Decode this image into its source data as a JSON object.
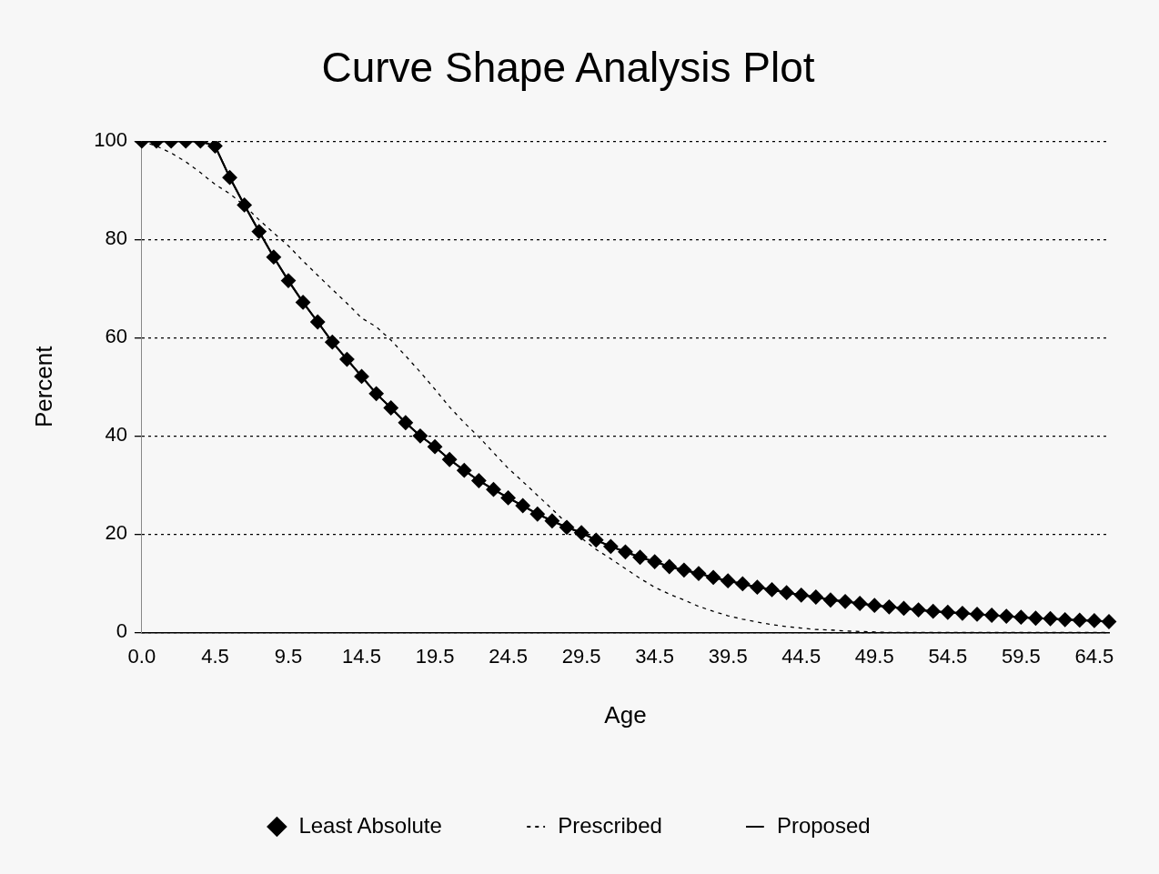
{
  "chart_data": {
    "type": "line",
    "title": "Curve Shape Analysis Plot",
    "xlabel": "Age",
    "ylabel": "Percent",
    "categories": [
      "0.0",
      null,
      null,
      null,
      null,
      "4.5",
      null,
      null,
      null,
      null,
      "9.5",
      null,
      null,
      null,
      null,
      "14.5",
      null,
      null,
      null,
      null,
      "19.5",
      null,
      null,
      null,
      null,
      "24.5",
      null,
      null,
      null,
      null,
      "29.5",
      null,
      null,
      null,
      null,
      "34.5",
      null,
      null,
      null,
      null,
      "39.5",
      null,
      null,
      null,
      null,
      "44.5",
      null,
      null,
      null,
      null,
      "49.5",
      null,
      null,
      null,
      null,
      "54.5",
      null,
      null,
      null,
      null,
      "59.5",
      null,
      null,
      null,
      null,
      "64.5",
      null
    ],
    "ylim": [
      0,
      100
    ],
    "yticks": [
      0,
      20,
      40,
      60,
      80,
      100
    ],
    "grid": "y",
    "legend": "bottom",
    "series": [
      {
        "name": "Least Absolute",
        "color": "#000000",
        "marker": "diamond",
        "line_style": "solid",
        "values": [
          100,
          100,
          100,
          100,
          100,
          99,
          92.6,
          87,
          81.6,
          76.4,
          71.6,
          67.2,
          63.2,
          59.1,
          55.6,
          52.1,
          48.6,
          45.7,
          42.7,
          40,
          37.8,
          35.2,
          33,
          30.9,
          29.1,
          27.4,
          25.8,
          24.1,
          22.7,
          21.4,
          20.3,
          18.8,
          17.5,
          16.4,
          15.3,
          14.4,
          13.4,
          12.7,
          12,
          11.2,
          10.5,
          9.9,
          9.2,
          8.7,
          8.1,
          7.6,
          7.2,
          6.6,
          6.3,
          5.9,
          5.5,
          5.2,
          4.9,
          4.6,
          4.3,
          4.1,
          3.9,
          3.7,
          3.5,
          3.3,
          3.1,
          2.9,
          2.8,
          2.6,
          2.5,
          2.4,
          2.2
        ]
      },
      {
        "name": "Prescribed",
        "color": "#000000",
        "marker": "none",
        "line_style": "dashed",
        "values": [
          100,
          99,
          97.6,
          95.8,
          93.6,
          91.2,
          89.3,
          86.9,
          84,
          81.3,
          78.7,
          75.6,
          72.7,
          69.8,
          67,
          64,
          62.2,
          59.5,
          56.3,
          53,
          49.5,
          45.9,
          42.7,
          39.8,
          36.6,
          33.4,
          30.7,
          27.9,
          25.1,
          22.2,
          19.2,
          16.9,
          15,
          13,
          11,
          9.2,
          7.8,
          6.6,
          5.3,
          4.3,
          3.4,
          2.7,
          2.1,
          1.6,
          1.2,
          0.9,
          0.6,
          0.5,
          0.3,
          0.2,
          0.1,
          0,
          0,
          0,
          0,
          0,
          0,
          0,
          0,
          0,
          0,
          0,
          0,
          0,
          0,
          0,
          0
        ]
      },
      {
        "name": "Proposed",
        "color": "#000000",
        "marker": "none",
        "line_style": "solid",
        "values": [
          100,
          100,
          100,
          100,
          100,
          99,
          92.6,
          87,
          81.6,
          76.4,
          71.6,
          67.2,
          63.2,
          59.1,
          55.6,
          52.1,
          48.6,
          45.7,
          42.7,
          40,
          37.8,
          35.2,
          33,
          30.9,
          29.1,
          27.4,
          25.8,
          24.1,
          22.7,
          21.4,
          20.3,
          18.8,
          17.5,
          16.4,
          15.3,
          14.4,
          13.4,
          12.7,
          12,
          11.2,
          10.5,
          9.9,
          9.2,
          8.7,
          8.1,
          7.6,
          7.2,
          6.6,
          6.3,
          5.9,
          5.5,
          5.2,
          4.9,
          4.6,
          4.3,
          4.1,
          3.9,
          3.7,
          3.5,
          3.3,
          3.1,
          2.9,
          2.8,
          2.6,
          2.5,
          2.4,
          2.2
        ]
      }
    ]
  }
}
